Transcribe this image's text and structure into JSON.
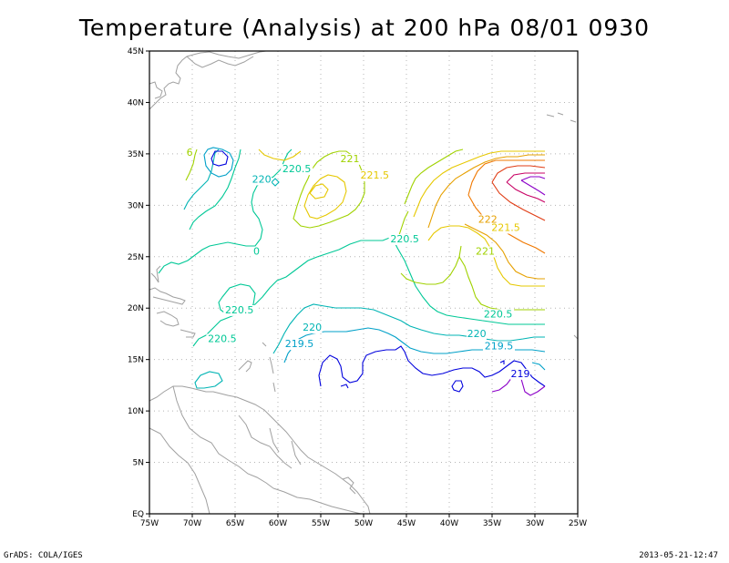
{
  "title": "Temperature (Analysis) at 200 hPa 08/01 0930",
  "footer": {
    "left": "GrADS: COLA/IGES",
    "right": "2013-05-21-12:47"
  },
  "map": {
    "lon_range": [
      -75,
      -25
    ],
    "lat_range": [
      0,
      45
    ],
    "lon_ticks": [
      "75W",
      "70W",
      "65W",
      "60W",
      "55W",
      "50W",
      "45W",
      "40W",
      "35W",
      "30W",
      "25W"
    ],
    "lat_ticks": [
      "EQ",
      "5N",
      "10N",
      "15N",
      "20N",
      "25N",
      "30N",
      "35N",
      "40N",
      "45N"
    ],
    "grid": "dotted",
    "colors": {
      "c219": "#0000dd",
      "c2195": "#00a0c8",
      "c220": "#00b4b4",
      "c2205": "#00c896",
      "c221": "#a0d200",
      "c2215": "#e6c800",
      "c222": "#e6a000",
      "warm1": "#f07800",
      "warm2": "#e03c14",
      "warm3": "#c80064",
      "coast": "#a0a0a0"
    },
    "contour_labels": [
      {
        "text": "220.5",
        "lon": -57.8,
        "lat": 33.2,
        "color": "c2205"
      },
      {
        "text": "220",
        "lon": -61.9,
        "lat": 32.2,
        "color": "c220"
      },
      {
        "text": "221",
        "lon": -51.6,
        "lat": 34.2,
        "color": "c221"
      },
      {
        "text": "221.5",
        "lon": -48.7,
        "lat": 32.6,
        "color": "c2215"
      },
      {
        "text": "6",
        "lon": -70.3,
        "lat": 34.8,
        "color": "c221"
      },
      {
        "text": "220.5",
        "lon": -45.2,
        "lat": 26.4,
        "color": "c2205"
      },
      {
        "text": "0",
        "lon": -62.5,
        "lat": 25.2,
        "color": "c2205"
      },
      {
        "text": "222",
        "lon": -35.5,
        "lat": 28.3,
        "color": "c222"
      },
      {
        "text": "221.5",
        "lon": -33.4,
        "lat": 27.5,
        "color": "c2215"
      },
      {
        "text": "221",
        "lon": -35.8,
        "lat": 25.2,
        "color": "c221"
      },
      {
        "text": "220.5",
        "lon": -64.5,
        "lat": 19.5,
        "color": "c2205"
      },
      {
        "text": "220.5",
        "lon": -66.5,
        "lat": 16.7,
        "color": "c2205"
      },
      {
        "text": "220",
        "lon": -56.0,
        "lat": 17.8,
        "color": "c220"
      },
      {
        "text": "219.5",
        "lon": -57.5,
        "lat": 16.2,
        "color": "c2195"
      },
      {
        "text": "220.5",
        "lon": -34.3,
        "lat": 19.1,
        "color": "c2205"
      },
      {
        "text": "220",
        "lon": -36.8,
        "lat": 17.2,
        "color": "c220"
      },
      {
        "text": "219.5",
        "lon": -34.2,
        "lat": 16.0,
        "color": "c2195"
      },
      {
        "text": "219",
        "lon": -31.7,
        "lat": 13.3,
        "color": "c219"
      }
    ]
  }
}
